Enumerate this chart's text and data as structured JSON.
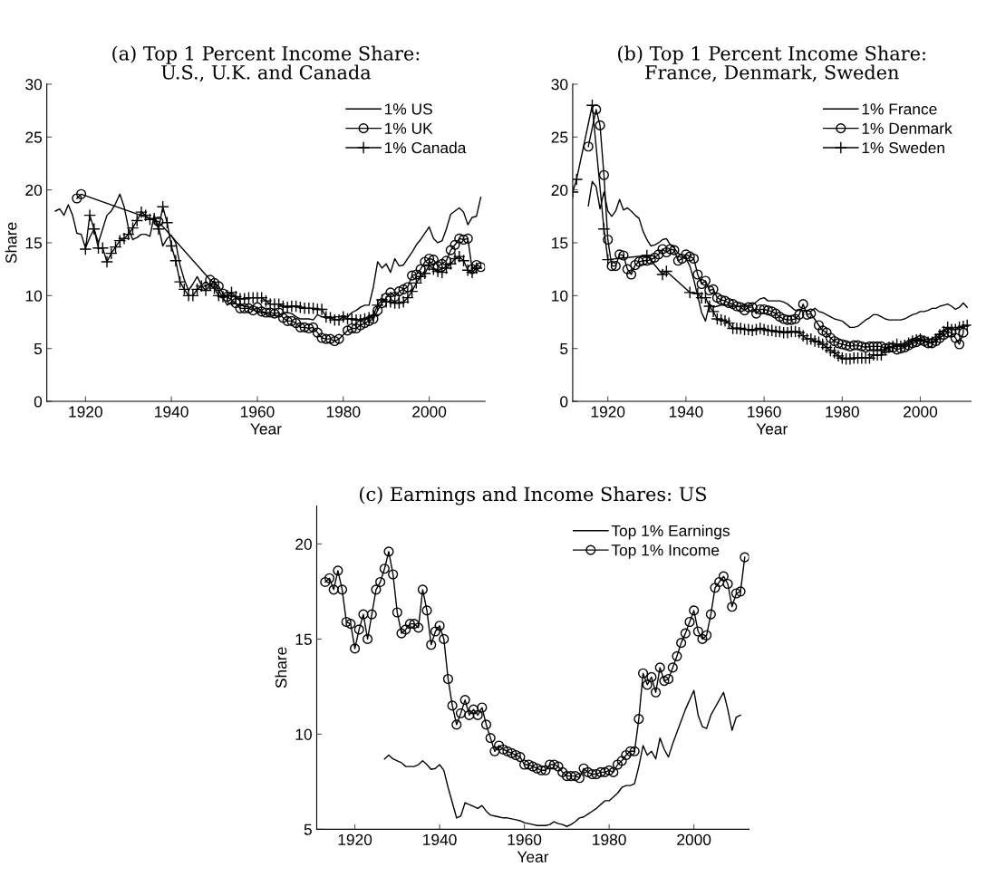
{
  "chart_data": [
    {
      "type": "line",
      "title": "(a) Top 1 Percent Income Share:\nU.S., U.K. and Canada",
      "xlabel": "Year",
      "ylabel": "Share",
      "xlim": [
        1911,
        2013
      ],
      "ylim": [
        0,
        30
      ],
      "xticks": [
        1920,
        1940,
        1960,
        1980,
        2000
      ],
      "yticks": [
        0,
        5,
        10,
        15,
        20,
        25,
        30
      ],
      "legend": "top right",
      "grid": false,
      "series": [
        {
          "name": "1% US",
          "color": "#000000",
          "marker": "none",
          "x": [
            1913,
            1914,
            1915,
            1916,
            1917,
            1918,
            1919,
            1920,
            1921,
            1922,
            1923,
            1924,
            1925,
            1926,
            1927,
            1928,
            1929,
            1930,
            1931,
            1932,
            1933,
            1934,
            1935,
            1936,
            1937,
            1938,
            1939,
            1940,
            1941,
            1942,
            1943,
            1944,
            1945,
            1946,
            1947,
            1948,
            1949,
            1950,
            1951,
            1952,
            1953,
            1954,
            1955,
            1956,
            1957,
            1958,
            1959,
            1960,
            1961,
            1962,
            1963,
            1964,
            1965,
            1966,
            1967,
            1968,
            1969,
            1970,
            1971,
            1972,
            1973,
            1974,
            1975,
            1976,
            1977,
            1978,
            1979,
            1980,
            1981,
            1982,
            1983,
            1984,
            1985,
            1986,
            1987,
            1988,
            1989,
            1990,
            1991,
            1992,
            1993,
            1994,
            1995,
            1996,
            1997,
            1998,
            1999,
            2000,
            2001,
            2002,
            2003,
            2004,
            2005,
            2006,
            2007,
            2008,
            2009,
            2010,
            2011,
            2012
          ],
          "values": [
            18.0,
            18.2,
            17.6,
            18.6,
            17.6,
            15.9,
            15.8,
            14.5,
            15.5,
            16.3,
            15.0,
            16.3,
            17.6,
            18.0,
            18.7,
            19.6,
            18.4,
            16.4,
            15.3,
            15.5,
            15.8,
            15.8,
            15.6,
            17.6,
            16.5,
            14.7,
            15.4,
            15.7,
            15.0,
            12.9,
            11.5,
            10.5,
            11.1,
            11.8,
            11.0,
            11.3,
            11.0,
            11.4,
            10.5,
            9.8,
            9.1,
            9.4,
            9.2,
            9.1,
            9.0,
            8.9,
            8.8,
            8.4,
            8.4,
            8.3,
            8.2,
            8.1,
            8.1,
            8.4,
            8.4,
            8.3,
            8.0,
            7.8,
            7.8,
            7.8,
            7.7,
            8.2,
            8.0,
            7.9,
            7.9,
            8.0,
            8.0,
            8.1,
            8.0,
            8.4,
            8.6,
            8.9,
            9.1,
            9.1,
            10.8,
            13.2,
            12.6,
            13.0,
            12.2,
            13.5,
            12.8,
            12.9,
            13.5,
            14.1,
            14.8,
            15.3,
            15.9,
            16.5,
            15.4,
            15.0,
            15.2,
            16.3,
            17.7,
            18.0,
            18.3,
            17.9,
            16.7,
            17.4,
            17.5,
            19.3
          ]
        },
        {
          "name": "1% UK",
          "color": "#000000",
          "marker": "circle",
          "x": [
            1918,
            1919,
            1937,
            1949,
            1950,
            1951,
            1952,
            1953,
            1954,
            1955,
            1956,
            1957,
            1958,
            1959,
            1960,
            1961,
            1962,
            1963,
            1964,
            1965,
            1966,
            1967,
            1968,
            1969,
            1970,
            1971,
            1972,
            1973,
            1974,
            1975,
            1976,
            1977,
            1978,
            1979,
            1981,
            1982,
            1983,
            1984,
            1985,
            1986,
            1987,
            1988,
            1989,
            1990,
            1991,
            1992,
            1993,
            1994,
            1995,
            1996,
            1997,
            1998,
            1999,
            2000,
            2001,
            2002,
            2003,
            2004,
            2005,
            2006,
            2007,
            2008,
            2009,
            2010,
            2011,
            2012
          ],
          "values": [
            19.2,
            19.6,
            17.0,
            11.5,
            11.2,
            10.9,
            10.2,
            9.9,
            9.6,
            9.3,
            8.8,
            8.8,
            8.8,
            8.6,
            8.9,
            8.5,
            8.4,
            8.4,
            8.3,
            8.4,
            7.9,
            7.6,
            7.6,
            7.4,
            7.0,
            7.0,
            6.9,
            7.0,
            6.5,
            6.0,
            5.9,
            5.9,
            5.7,
            5.9,
            6.7,
            6.9,
            6.9,
            7.2,
            7.4,
            7.6,
            7.8,
            8.6,
            9.3,
            9.8,
            10.3,
            9.9,
            10.4,
            10.6,
            10.8,
            11.9,
            12.0,
            12.5,
            13.2,
            13.5,
            13.4,
            12.8,
            13.0,
            13.3,
            14.3,
            14.8,
            15.4,
            15.3,
            15.4,
            12.5,
            12.9,
            12.7
          ]
        },
        {
          "name": "1% Canada",
          "color": "#000000",
          "marker": "cross",
          "x": [
            1920,
            1921,
            1922,
            1923,
            1924,
            1925,
            1926,
            1927,
            1928,
            1929,
            1930,
            1931,
            1932,
            1933,
            1934,
            1935,
            1936,
            1937,
            1938,
            1939,
            1940,
            1941,
            1942,
            1943,
            1944,
            1945,
            1946,
            1947,
            1948,
            1949,
            1950,
            1951,
            1952,
            1953,
            1954,
            1955,
            1956,
            1957,
            1958,
            1959,
            1960,
            1961,
            1962,
            1963,
            1964,
            1965,
            1966,
            1967,
            1968,
            1969,
            1970,
            1971,
            1972,
            1973,
            1974,
            1975,
            1976,
            1977,
            1978,
            1979,
            1980,
            1981,
            1982,
            1983,
            1984,
            1985,
            1986,
            1987,
            1988,
            1989,
            1990,
            1991,
            1992,
            1993,
            1994,
            1995,
            1996,
            1997,
            1998,
            1999,
            2000,
            2001,
            2002,
            2003,
            2004,
            2005,
            2006,
            2007,
            2008,
            2009,
            2010,
            2011
          ],
          "values": [
            14.4,
            17.6,
            16.3,
            14.5,
            14.5,
            13.2,
            14.0,
            14.6,
            15.2,
            15.4,
            15.8,
            16.4,
            17.1,
            17.9,
            17.6,
            17.2,
            17.3,
            16.3,
            18.4,
            16.9,
            14.7,
            13.3,
            11.3,
            10.6,
            10.0,
            10.0,
            10.6,
            10.9,
            10.5,
            11.0,
            10.7,
            10.0,
            9.9,
            10.0,
            10.3,
            9.9,
            9.7,
            9.7,
            9.8,
            9.8,
            9.8,
            9.8,
            9.5,
            9.2,
            9.2,
            9.2,
            9.0,
            8.9,
            9.0,
            9.0,
            8.9,
            8.8,
            8.8,
            8.8,
            8.7,
            8.7,
            8.0,
            7.9,
            7.7,
            7.7,
            8.0,
            7.8,
            7.8,
            7.7,
            7.7,
            7.8,
            7.9,
            8.1,
            9.1,
            9.6,
            9.4,
            9.4,
            9.3,
            9.3,
            9.4,
            9.8,
            10.4,
            11.2,
            11.8,
            12.1,
            12.9,
            12.5,
            12.3,
            12.2,
            12.6,
            13.0,
            13.5,
            13.7,
            13.3,
            12.4,
            12.2,
            12.6
          ]
        }
      ]
    },
    {
      "type": "line",
      "title": "(b) Top 1 Percent Income Share:\nFrance, Denmark, Sweden",
      "xlabel": "Year",
      "xlim": [
        1911,
        2013
      ],
      "ylim": [
        0,
        30
      ],
      "xticks": [
        1920,
        1940,
        1960,
        1980,
        2000
      ],
      "yticks": [
        0,
        5,
        10,
        15,
        20,
        25,
        30
      ],
      "legend": "top right",
      "grid": false,
      "series": [
        {
          "name": "1% France",
          "color": "#000000",
          "marker": "none",
          "x": [
            1915,
            1916,
            1917,
            1918,
            1919,
            1920,
            1921,
            1922,
            1923,
            1924,
            1925,
            1926,
            1927,
            1928,
            1929,
            1930,
            1931,
            1932,
            1933,
            1934,
            1935,
            1936,
            1937,
            1938,
            1939,
            1940,
            1941,
            1942,
            1943,
            1944,
            1945,
            1946,
            1947,
            1948,
            1949,
            1950,
            1951,
            1952,
            1953,
            1954,
            1955,
            1956,
            1957,
            1958,
            1959,
            1960,
            1961,
            1962,
            1963,
            1964,
            1965,
            1966,
            1967,
            1968,
            1969,
            1970,
            1971,
            1972,
            1973,
            1974,
            1975,
            1976,
            1977,
            1978,
            1979,
            1980,
            1981,
            1982,
            1983,
            1984,
            1985,
            1986,
            1987,
            1988,
            1989,
            1990,
            1991,
            1992,
            1993,
            1994,
            1995,
            1996,
            1997,
            1998,
            1999,
            2000,
            2001,
            2002,
            2003,
            2004,
            2005,
            2006,
            2007,
            2008,
            2009,
            2010,
            2011,
            2012
          ],
          "values": [
            18.5,
            20.8,
            20.3,
            18.2,
            19.8,
            18.0,
            17.5,
            18.0,
            19.1,
            18.1,
            18.3,
            18.0,
            17.6,
            17.3,
            16.1,
            15.3,
            14.7,
            14.8,
            15.0,
            15.3,
            15.4,
            14.8,
            14.5,
            14.0,
            13.8,
            13.5,
            12.8,
            11.5,
            10.0,
            8.4,
            7.6,
            9.2,
            8.9,
            9.0,
            9.1,
            9.1,
            9.1,
            9.0,
            9.0,
            9.0,
            9.2,
            9.0,
            9.1,
            9.4,
            9.7,
            9.8,
            9.5,
            9.5,
            9.5,
            9.5,
            9.4,
            9.2,
            8.9,
            8.6,
            8.7,
            8.6,
            8.6,
            8.5,
            8.8,
            8.5,
            8.4,
            8.2,
            8.0,
            7.8,
            7.7,
            7.6,
            7.3,
            7.0,
            7.0,
            7.1,
            7.4,
            7.7,
            7.9,
            8.2,
            8.2,
            8.0,
            7.8,
            7.7,
            7.7,
            7.7,
            7.7,
            7.8,
            8.0,
            8.2,
            8.3,
            8.5,
            8.5,
            8.6,
            8.8,
            8.8,
            9.0,
            9.1,
            9.2,
            9.0,
            8.7,
            8.9,
            9.3,
            8.9
          ]
        },
        {
          "name": "1% Denmark",
          "color": "#000000",
          "marker": "circle",
          "x": [
            1915,
            1917,
            1918,
            1919,
            1920,
            1921,
            1922,
            1923,
            1924,
            1925,
            1926,
            1927,
            1928,
            1929,
            1930,
            1931,
            1932,
            1933,
            1934,
            1935,
            1936,
            1937,
            1938,
            1939,
            1940,
            1941,
            1942,
            1943,
            1944,
            1945,
            1946,
            1947,
            1948,
            1949,
            1950,
            1951,
            1952,
            1953,
            1954,
            1955,
            1956,
            1957,
            1958,
            1959,
            1960,
            1961,
            1962,
            1963,
            1964,
            1965,
            1966,
            1967,
            1968,
            1969,
            1970,
            1971,
            1972,
            1974,
            1975,
            1976,
            1977,
            1978,
            1979,
            1980,
            1981,
            1982,
            1983,
            1984,
            1985,
            1986,
            1987,
            1988,
            1989,
            1990,
            1991,
            1992,
            1993,
            1994,
            1995,
            1996,
            1997,
            1998,
            1999,
            2000,
            2001,
            2002,
            2003,
            2004,
            2005,
            2006,
            2007,
            2008,
            2009,
            2010,
            2011
          ],
          "values": [
            24.1,
            27.6,
            26.1,
            21.4,
            15.3,
            12.8,
            12.8,
            13.9,
            13.8,
            12.5,
            12.0,
            12.9,
            13.2,
            13.3,
            13.3,
            13.4,
            13.6,
            13.9,
            14.4,
            14.1,
            14.4,
            14.3,
            13.3,
            13.5,
            13.9,
            13.7,
            13.5,
            12.0,
            11.1,
            11.4,
            10.5,
            10.6,
            9.8,
            9.6,
            9.5,
            9.3,
            9.2,
            9.0,
            8.9,
            8.6,
            8.9,
            8.9,
            8.3,
            8.7,
            8.7,
            8.6,
            8.5,
            8.3,
            8.0,
            7.8,
            7.7,
            7.7,
            7.8,
            8.2,
            9.2,
            8.2,
            8.3,
            7.2,
            6.7,
            6.5,
            6.0,
            5.7,
            5.5,
            5.4,
            5.3,
            5.2,
            5.3,
            5.3,
            5.2,
            5.1,
            5.2,
            5.2,
            5.2,
            5.2,
            5.0,
            5.1,
            5.1,
            4.9,
            5.0,
            5.1,
            5.3,
            5.5,
            5.6,
            5.8,
            5.7,
            5.5,
            5.5,
            5.7,
            6.0,
            6.3,
            6.5,
            6.5,
            6.0,
            5.4,
            6.5
          ]
        },
        {
          "name": "1% Sweden",
          "color": "#000000",
          "marker": "cross",
          "x": [
            1911,
            1912,
            1916,
            1919,
            1920,
            1930,
            1934,
            1935,
            1941,
            1943,
            1944,
            1945,
            1946,
            1947,
            1948,
            1949,
            1950,
            1951,
            1952,
            1953,
            1954,
            1955,
            1956,
            1957,
            1958,
            1959,
            1960,
            1961,
            1962,
            1963,
            1964,
            1965,
            1966,
            1967,
            1968,
            1969,
            1970,
            1971,
            1972,
            1973,
            1974,
            1975,
            1976,
            1977,
            1978,
            1979,
            1980,
            1981,
            1982,
            1983,
            1984,
            1985,
            1986,
            1987,
            1988,
            1989,
            1990,
            1991,
            1992,
            1993,
            1994,
            1995,
            1996,
            1997,
            1998,
            1999,
            2000,
            2001,
            2002,
            2003,
            2004,
            2005,
            2006,
            2007,
            2008,
            2009,
            2010,
            2011,
            2012
          ],
          "values": [
            19.8,
            21.0,
            28.0,
            16.3,
            13.4,
            13.8,
            12.0,
            12.3,
            10.3,
            10.2,
            9.8,
            9.8,
            9.0,
            8.5,
            7.8,
            7.7,
            7.6,
            7.4,
            6.9,
            6.9,
            6.9,
            6.8,
            6.8,
            6.7,
            6.8,
            6.9,
            6.8,
            6.7,
            6.7,
            6.6,
            6.6,
            6.5,
            6.5,
            6.6,
            6.6,
            6.5,
            6.2,
            5.9,
            5.9,
            5.7,
            5.6,
            5.4,
            5.1,
            4.8,
            4.6,
            4.3,
            4.1,
            4.0,
            4.0,
            4.1,
            4.1,
            4.1,
            4.1,
            4.1,
            4.4,
            4.4,
            4.4,
            4.9,
            5.1,
            5.2,
            5.4,
            5.2,
            5.3,
            5.5,
            5.7,
            5.8,
            5.9,
            5.7,
            5.6,
            5.6,
            5.9,
            6.3,
            6.6,
            7.0,
            6.8,
            6.8,
            7.0,
            7.1,
            7.2
          ]
        }
      ]
    },
    {
      "type": "line",
      "title": "(c) Earnings and Income Shares: US",
      "xlabel": "Year",
      "ylabel": "Share",
      "xlim": [
        1911,
        2013
      ],
      "ylim": [
        5,
        22
      ],
      "xticks": [
        1920,
        1940,
        1960,
        1980,
        2000
      ],
      "yticks": [
        5,
        10,
        15,
        20
      ],
      "legend": "top right",
      "grid": false,
      "series": [
        {
          "name": "Top 1% Earnings",
          "color": "#000000",
          "marker": "none",
          "x": [
            1927,
            1928,
            1929,
            1930,
            1931,
            1932,
            1933,
            1934,
            1935,
            1936,
            1937,
            1938,
            1939,
            1940,
            1941,
            1942,
            1943,
            1944,
            1945,
            1946,
            1947,
            1948,
            1949,
            1950,
            1951,
            1952,
            1953,
            1954,
            1955,
            1956,
            1957,
            1958,
            1959,
            1960,
            1961,
            1962,
            1963,
            1964,
            1965,
            1966,
            1967,
            1968,
            1969,
            1970,
            1971,
            1972,
            1973,
            1974,
            1975,
            1976,
            1977,
            1978,
            1979,
            1980,
            1981,
            1982,
            1983,
            1984,
            1985,
            1986,
            1987,
            1988,
            1989,
            1990,
            1991,
            1992,
            1993,
            1994,
            1995,
            1996,
            1997,
            1998,
            1999,
            2000,
            2001,
            2002,
            2003,
            2004,
            2005,
            2006,
            2007,
            2008,
            2009,
            2010,
            2011
          ],
          "values": [
            8.7,
            8.9,
            8.7,
            8.6,
            8.5,
            8.3,
            8.3,
            8.3,
            8.4,
            8.6,
            8.4,
            8.15,
            8.2,
            8.4,
            8.1,
            7.2,
            6.4,
            5.6,
            5.7,
            6.4,
            6.3,
            6.2,
            6.1,
            6.25,
            5.95,
            5.75,
            5.7,
            5.65,
            5.6,
            5.6,
            5.55,
            5.5,
            5.45,
            5.35,
            5.3,
            5.25,
            5.2,
            5.2,
            5.2,
            5.25,
            5.4,
            5.3,
            5.25,
            5.15,
            5.25,
            5.4,
            5.6,
            5.65,
            5.8,
            5.95,
            6.1,
            6.3,
            6.5,
            6.5,
            6.7,
            6.9,
            7.2,
            7.3,
            7.3,
            7.4,
            8.3,
            9.4,
            8.9,
            9.1,
            8.7,
            9.8,
            9.2,
            8.8,
            9.5,
            10.1,
            10.7,
            11.3,
            11.8,
            12.3,
            11.0,
            10.4,
            10.3,
            11.0,
            11.4,
            11.8,
            12.2,
            11.3,
            10.2,
            10.9,
            11.0
          ]
        },
        {
          "name": "Top 1% Income",
          "color": "#000000",
          "marker": "circle",
          "x": [
            1913,
            1914,
            1915,
            1916,
            1917,
            1918,
            1919,
            1920,
            1921,
            1922,
            1923,
            1924,
            1925,
            1926,
            1927,
            1928,
            1929,
            1930,
            1931,
            1932,
            1933,
            1934,
            1935,
            1936,
            1937,
            1938,
            1939,
            1940,
            1941,
            1942,
            1943,
            1944,
            1945,
            1946,
            1947,
            1948,
            1949,
            1950,
            1951,
            1952,
            1953,
            1954,
            1955,
            1956,
            1957,
            1958,
            1959,
            1960,
            1961,
            1962,
            1963,
            1964,
            1965,
            1966,
            1967,
            1968,
            1969,
            1970,
            1971,
            1972,
            1973,
            1974,
            1975,
            1976,
            1977,
            1978,
            1979,
            1980,
            1981,
            1982,
            1983,
            1984,
            1985,
            1986,
            1987,
            1988,
            1989,
            1990,
            1991,
            1992,
            1993,
            1994,
            1995,
            1996,
            1997,
            1998,
            1999,
            2000,
            2001,
            2002,
            2003,
            2004,
            2005,
            2006,
            2007,
            2008,
            2009,
            2010,
            2011,
            2012
          ],
          "values": [
            18.0,
            18.2,
            17.6,
            18.6,
            17.6,
            15.9,
            15.8,
            14.5,
            15.5,
            16.3,
            15.0,
            16.3,
            17.6,
            18.0,
            18.7,
            19.6,
            18.4,
            16.4,
            15.3,
            15.5,
            15.8,
            15.8,
            15.6,
            17.6,
            16.5,
            14.7,
            15.4,
            15.7,
            15.0,
            12.9,
            11.5,
            10.5,
            11.1,
            11.8,
            11.0,
            11.3,
            11.0,
            11.4,
            10.5,
            9.8,
            9.1,
            9.4,
            9.2,
            9.1,
            9.0,
            8.9,
            8.8,
            8.4,
            8.4,
            8.3,
            8.2,
            8.1,
            8.1,
            8.4,
            8.4,
            8.3,
            8.0,
            7.8,
            7.8,
            7.8,
            7.7,
            8.2,
            8.0,
            7.9,
            7.9,
            8.0,
            8.0,
            8.1,
            8.0,
            8.4,
            8.6,
            8.9,
            9.1,
            9.1,
            10.8,
            13.2,
            12.6,
            13.0,
            12.2,
            13.5,
            12.8,
            12.9,
            13.5,
            14.1,
            14.8,
            15.3,
            15.9,
            16.5,
            15.4,
            15.0,
            15.2,
            16.3,
            17.7,
            18.0,
            18.3,
            17.9,
            16.7,
            17.4,
            17.5,
            19.3
          ]
        }
      ]
    }
  ]
}
